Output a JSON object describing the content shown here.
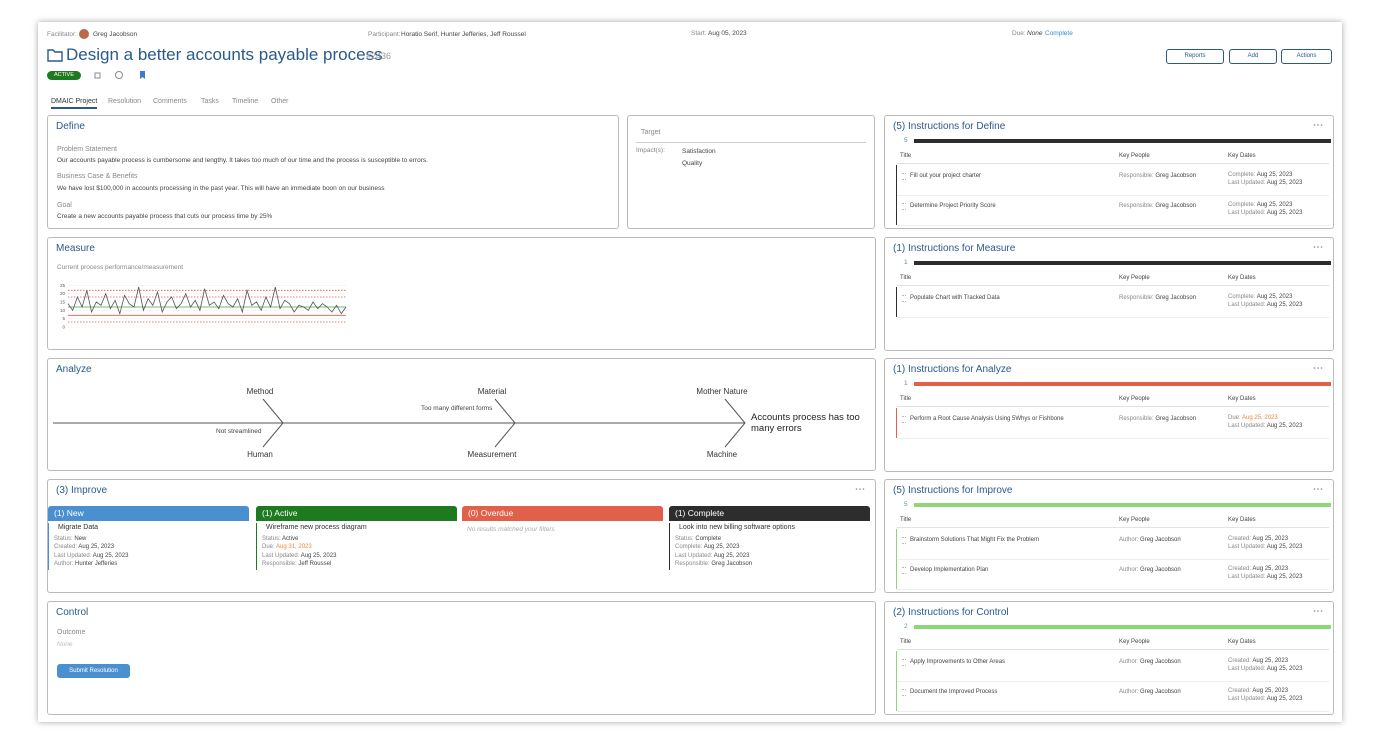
{
  "header": {
    "facilitator_label": "Facilitator:",
    "facilitator": "Greg Jacobson",
    "participant_label": "Participant:",
    "participants": "Horatio Serif, Hunter Jefferies, Jeff Roussel",
    "start_label": "Start:",
    "start": "Aug 05, 2023",
    "due_label": "Due:",
    "due": "None",
    "due_status": "Complete",
    "title": "Design a better accounts payable process",
    "id": "#2436",
    "status": "ACTIVE",
    "buttons": [
      "Reports",
      "Add",
      "Actions"
    ]
  },
  "tabs": [
    "DMAIC Project",
    "Resolution",
    "Comments",
    "Tasks",
    "Timeline",
    "Other"
  ],
  "define": {
    "title": "Define",
    "fields": [
      {
        "label": "Problem Statement",
        "text": "Our accounts payable process is cumbersome and lengthy. It takes too much of our time and the process is susceptible to errors."
      },
      {
        "label": "Business Case & Benefits",
        "text": "We have lost $100,000 in accounts processing in the past year. This will have an immediate boon on our business"
      },
      {
        "label": "Goal",
        "text": "Create a new accounts payable process that cuts our process time by 25%"
      }
    ]
  },
  "target": {
    "title": "Target",
    "impact_label": "Impact(s):",
    "impacts": [
      "Satisfaction",
      "Quality"
    ]
  },
  "measure": {
    "title": "Measure",
    "subtitle": "Current process performance/measurement",
    "chart": {
      "type": "line",
      "ylim": [
        0,
        27
      ],
      "yticks": [
        0,
        5,
        10,
        15,
        20,
        25
      ],
      "color": "#555555",
      "values": [
        14,
        10,
        18,
        12,
        22,
        9,
        15,
        13,
        20,
        11,
        16,
        8,
        19,
        14,
        12,
        24,
        10,
        17,
        13,
        21,
        9,
        15,
        18,
        11,
        14,
        20,
        12,
        16,
        10,
        23,
        13,
        15,
        11,
        19,
        14,
        12,
        17,
        9,
        22,
        13,
        15,
        10,
        18,
        12,
        24,
        11,
        16,
        14,
        9,
        13,
        12,
        10,
        15,
        11,
        14,
        12,
        9,
        13,
        8,
        12
      ],
      "lines": [
        {
          "value": 22,
          "color": "#e05a4a",
          "dashed": true
        },
        {
          "value": 18,
          "color": "#e05a4a",
          "dashed": true
        },
        {
          "value": 12,
          "color": "#3aa84a",
          "dashed": false
        },
        {
          "value": 7,
          "color": "#e05a4a",
          "dashed": false
        },
        {
          "value": 3,
          "color": "#e05a4a",
          "dashed": true
        }
      ]
    }
  },
  "analyze": {
    "title": "Analyze",
    "top": [
      "Method",
      "Material",
      "Mother Nature"
    ],
    "bottom": [
      "Human",
      "Measurement",
      "Machine"
    ],
    "causes": [
      "Not streamlined",
      "Too many different forms"
    ],
    "effect": "Accounts process has too many errors"
  },
  "improve": {
    "title": "(3) Improve",
    "columns": [
      {
        "header": "(1) New",
        "color": "#4a90d0",
        "items": [
          {
            "title": "Migrate Data",
            "fields": [
              [
                "Status:",
                "New"
              ],
              [
                "Created:",
                "Aug 25, 2023"
              ],
              [
                "Last Updated:",
                "Aug 25, 2023"
              ],
              [
                "Author:",
                "Hunter Jefferies"
              ]
            ]
          }
        ]
      },
      {
        "header": "(1) Active",
        "color": "#1e7a1e",
        "items": [
          {
            "title": "Wireframe new process diagram",
            "fields": [
              [
                "Status:",
                "Active"
              ],
              [
                "Due:",
                "Aug 31, 2023"
              ],
              [
                "Last Updated:",
                "Aug 25, 2023"
              ],
              [
                "Responsible:",
                "Jeff Roussel"
              ]
            ]
          }
        ]
      },
      {
        "header": "(0) Overdue",
        "color": "#e0604a",
        "empty": "No results matched your filters",
        "items": []
      },
      {
        "header": "(1) Complete",
        "color": "#2d2d2d",
        "items": [
          {
            "title": "Look into new billing software options",
            "fields": [
              [
                "Status:",
                "Complete"
              ],
              [
                "Complete:",
                "Aug 25, 2023"
              ],
              [
                "Last Updated:",
                "Aug 25, 2023"
              ],
              [
                "Responsible:",
                "Greg Jacobson"
              ]
            ]
          }
        ]
      }
    ]
  },
  "control": {
    "title": "Control",
    "outcome_label": "Outcome",
    "outcome": "None",
    "button": "Submit Resolution"
  },
  "instructions": {
    "columns": [
      "Title",
      "Key People",
      "Key Dates"
    ],
    "panels": [
      {
        "title": "(5) Instructions for Define",
        "count": 5,
        "color": "#2d2d2d",
        "rows": [
          {
            "title": "Fill out your project charter",
            "people": [
              "Responsible:",
              "Greg Jacobson"
            ],
            "dates": [
              [
                "Complete:",
                "Aug 25, 2023"
              ],
              [
                "Last Updated:",
                "Aug 25, 2023"
              ]
            ]
          },
          {
            "title": "Determine Project Priority Score",
            "people": [
              "Responsible:",
              "Greg Jacobson"
            ],
            "dates": [
              [
                "Complete:",
                "Aug 25, 2023"
              ],
              [
                "Last Updated:",
                "Aug 25, 2023"
              ]
            ]
          }
        ]
      },
      {
        "title": "(1) Instructions for Measure",
        "count": 1,
        "color": "#2d2d2d",
        "rows": [
          {
            "title": "Populate Chart with Tracked Data",
            "people": [
              "Responsible:",
              "Greg Jacobson"
            ],
            "dates": [
              [
                "Complete:",
                "Aug 25, 2023"
              ],
              [
                "Last Updated:",
                "Aug 25, 2023"
              ]
            ]
          }
        ]
      },
      {
        "title": "(1) Instructions for Analyze",
        "count": 1,
        "color": "#e0604a",
        "rows": [
          {
            "title": "Perform a Root Cause Analysis Using 5Whys or Fishbone",
            "people": [
              "Responsible:",
              "Greg Jacobson"
            ],
            "dates": [
              [
                "Due:",
                "Aug 25, 2023"
              ],
              [
                "Last Updated:",
                "Aug 25, 2023"
              ]
            ]
          }
        ]
      },
      {
        "title": "(5) Instructions for Improve",
        "count": 5,
        "color": "#8fd67a",
        "rows": [
          {
            "title": "Brainstorm Solutions That Might Fix the Problem",
            "people": [
              "Author:",
              "Greg Jacobson"
            ],
            "dates": [
              [
                "Created:",
                "Aug 25, 2023"
              ],
              [
                "Last Updated:",
                "Aug 25, 2023"
              ]
            ]
          },
          {
            "title": "Develop Implementation Plan",
            "people": [
              "Author:",
              "Greg Jacobson"
            ],
            "dates": [
              [
                "Created:",
                "Aug 25, 2023"
              ],
              [
                "Last Updated:",
                "Aug 25, 2023"
              ]
            ]
          }
        ]
      },
      {
        "title": "(2) Instructions for Control",
        "count": 2,
        "color": "#8fd67a",
        "rows": [
          {
            "title": "Apply Improvements to Other Areas",
            "people": [
              "Author:",
              "Greg Jacobson"
            ],
            "dates": [
              [
                "Created:",
                "Aug 25, 2023"
              ],
              [
                "Last Updated:",
                "Aug 25, 2023"
              ]
            ]
          },
          {
            "title": "Document the Improved Process",
            "people": [
              "Author:",
              "Greg Jacobson"
            ],
            "dates": [
              [
                "Created:",
                "Aug 25, 2023"
              ],
              [
                "Last Updated:",
                "Aug 25, 2023"
              ]
            ]
          }
        ]
      }
    ]
  }
}
